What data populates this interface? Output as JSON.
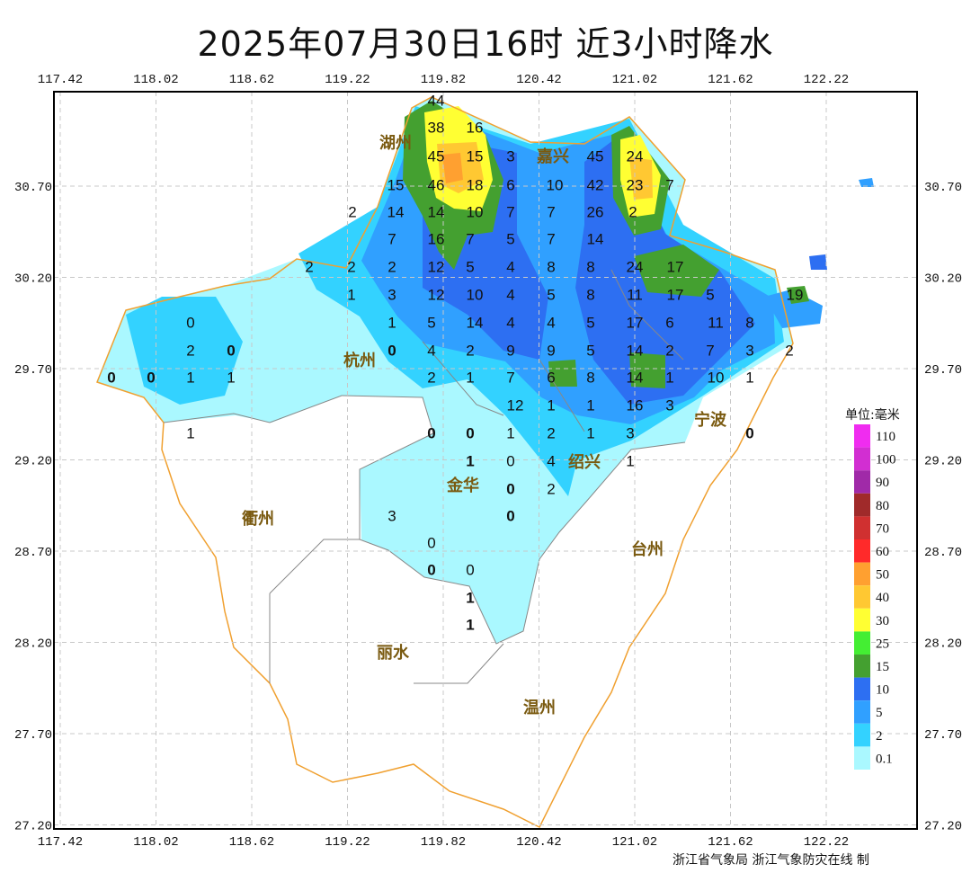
{
  "title": "2025年07月30日16时  近3小时降水",
  "footer": "浙江省气象局   浙江气象防灾在线 制",
  "axes": {
    "lon_ticks": [
      "117.42",
      "118.02",
      "118.62",
      "119.22",
      "119.82",
      "120.42",
      "121.02",
      "121.62",
      "122.22"
    ],
    "lat_ticks": [
      "30.70",
      "30.20",
      "29.70",
      "29.20",
      "28.70",
      "28.20",
      "27.70",
      "27.20"
    ],
    "grid": true
  },
  "legend": {
    "title": "单位:毫米",
    "levels": [
      {
        "label": "110",
        "color": "#f02cf0"
      },
      {
        "label": "100",
        "color": "#d22ed2"
      },
      {
        "label": "90",
        "color": "#a02aa8"
      },
      {
        "label": "80",
        "color": "#a02a2a"
      },
      {
        "label": "70",
        "color": "#d03030"
      },
      {
        "label": "60",
        "color": "#ff2a2a"
      },
      {
        "label": "50",
        "color": "#ffa030"
      },
      {
        "label": "40",
        "color": "#ffc832"
      },
      {
        "label": "30",
        "color": "#ffff33"
      },
      {
        "label": "25",
        "color": "#44ee33"
      },
      {
        "label": "15",
        "color": "#44a030"
      },
      {
        "label": "10",
        "color": "#2d6ff2"
      },
      {
        "label": "5",
        "color": "#30a0ff"
      },
      {
        "label": "2",
        "color": "#33d2ff"
      },
      {
        "label": "0.1",
        "color": "#aaf8ff"
      }
    ]
  },
  "cities": [
    "杭州",
    "湖州",
    "嘉兴",
    "绍兴",
    "宁波",
    "衢州",
    "金华",
    "台州",
    "丽水",
    "温州"
  ],
  "stations": [
    "44",
    "38",
    "16",
    "45",
    "15",
    "3",
    "45",
    "24",
    "15",
    "46",
    "18",
    "6",
    "10",
    "42",
    "23",
    "7",
    "2",
    "14",
    "14",
    "10",
    "7",
    "7",
    "26",
    "2",
    "7",
    "16",
    "7",
    "5",
    "7",
    "14",
    "2",
    "2",
    "2",
    "12",
    "5",
    "4",
    "8",
    "8",
    "24",
    "17",
    "1",
    "3",
    "12",
    "10",
    "4",
    "5",
    "8",
    "11",
    "17",
    "5",
    "19",
    "0",
    "1",
    "5",
    "14",
    "4",
    "4",
    "5",
    "17",
    "6",
    "11",
    "8",
    "2",
    "0",
    "0",
    "4",
    "2",
    "9",
    "9",
    "5",
    "14",
    "2",
    "7",
    "3",
    "2",
    "0",
    "0",
    "1",
    "1",
    "2",
    "1",
    "7",
    "6",
    "8",
    "14",
    "1",
    "10",
    "1",
    "12",
    "1",
    "1",
    "16",
    "3",
    "1",
    "0",
    "0",
    "1",
    "2",
    "1",
    "3",
    "0",
    "1",
    "0",
    "4",
    "1",
    "0",
    "2",
    "3",
    "0",
    "0",
    "0",
    "0",
    "1",
    "1"
  ]
}
